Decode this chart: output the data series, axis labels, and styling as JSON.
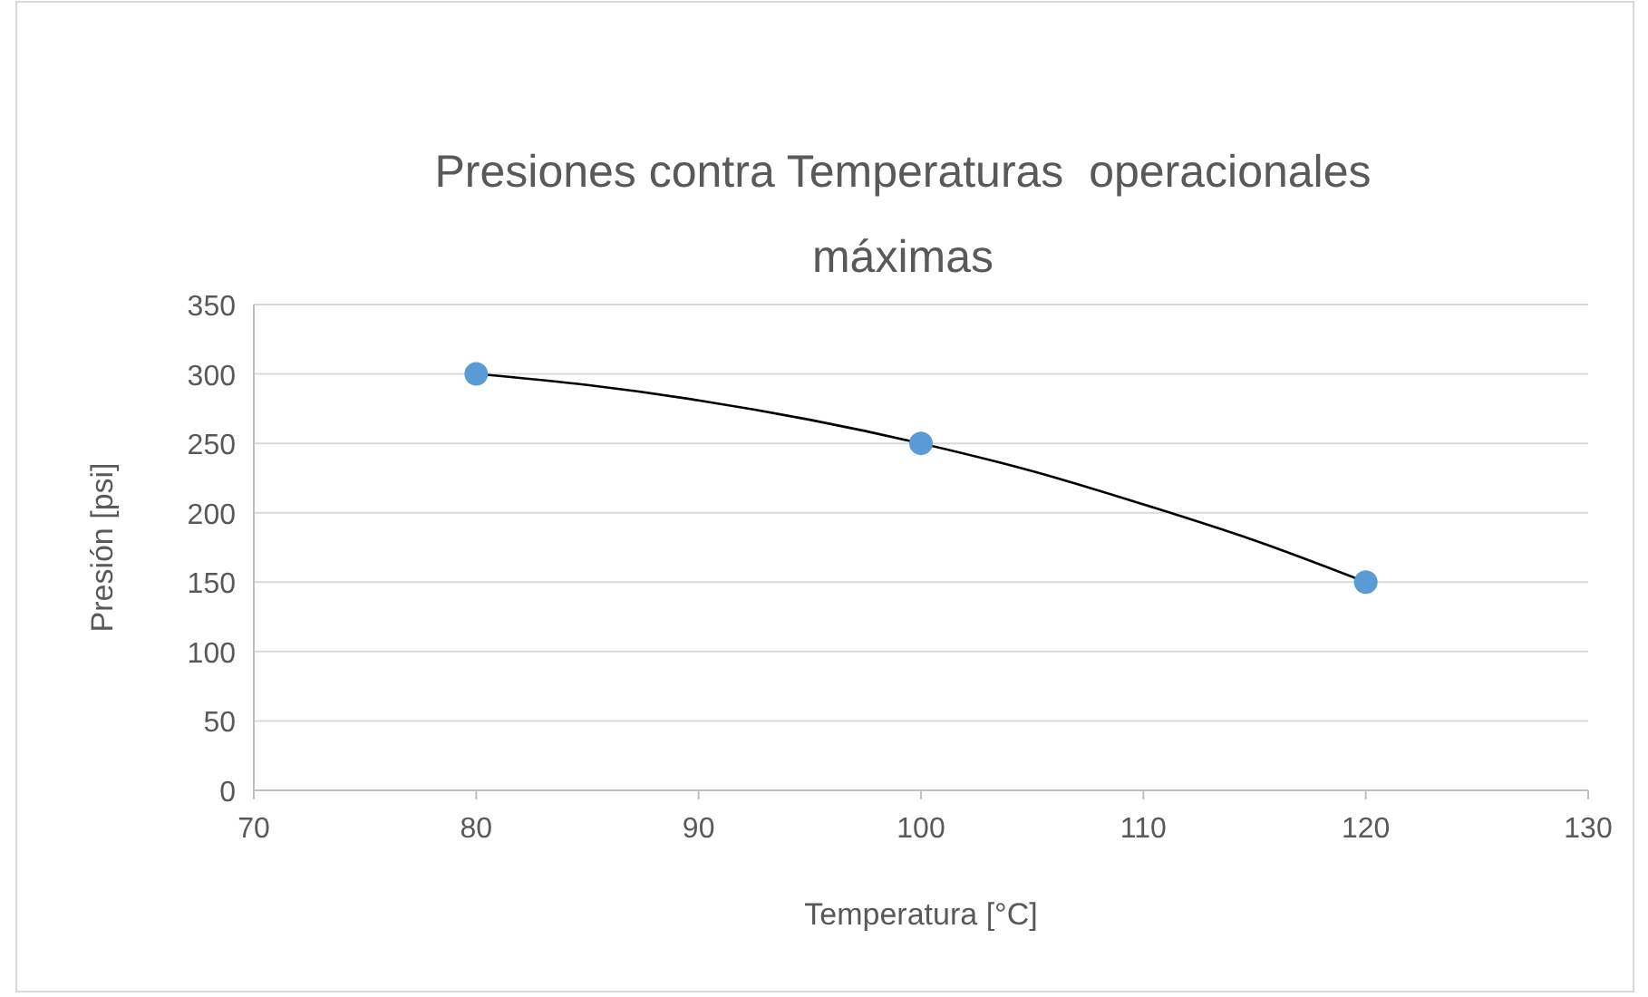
{
  "chart_data": {
    "type": "scatter",
    "title": "Presiones contra Temperaturas  operacionales máximas",
    "xlabel": "Temperatura [°C]",
    "ylabel": "Presión [psi]",
    "series": [
      {
        "type": "scatter",
        "color": "#5b9bd5",
        "x": [
          80,
          100,
          120
        ],
        "values": [
          300,
          250,
          150
        ],
        "marker": "circle"
      },
      {
        "type": "line",
        "color": "#000000",
        "x": [
          80,
          85,
          90,
          95,
          100,
          105,
          110,
          115,
          120
        ],
        "values": [
          300,
          292,
          281,
          267,
          250,
          230,
          206,
          180,
          150
        ],
        "marker": "none",
        "line_style": "solid"
      }
    ],
    "xlim": [
      70,
      130
    ],
    "xticks": [
      70,
      80,
      90,
      100,
      110,
      120,
      130
    ],
    "ylim": [
      0,
      350
    ],
    "yticks": [
      0,
      50,
      100,
      150,
      200,
      250,
      300,
      350
    ],
    "grid": "y"
  }
}
